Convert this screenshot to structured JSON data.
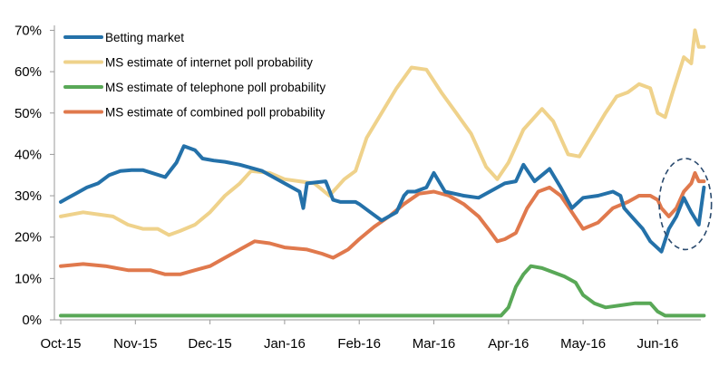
{
  "chart_data": {
    "type": "line",
    "title": "",
    "xlabel": "",
    "ylabel": "",
    "x_tick_labels": [
      "Oct-15",
      "Nov-15",
      "Dec-15",
      "Jan-16",
      "Feb-16",
      "Mar-16",
      "Apr-16",
      "May-16",
      "Jun-16"
    ],
    "y_tick_labels": [
      "0%",
      "10%",
      "20%",
      "30%",
      "40%",
      "50%",
      "60%",
      "70%"
    ],
    "ylim": [
      0,
      70
    ],
    "y_unit": "%",
    "x_unit": "months since Oct-15",
    "xlim": [
      0,
      8.75
    ],
    "legend_position": "top-left",
    "grid": false,
    "series": [
      {
        "name": "Betting market",
        "color": "#2471A9",
        "x": [
          0,
          0.1,
          0.2,
          0.35,
          0.5,
          0.65,
          0.8,
          0.95,
          1.1,
          1.4,
          1.55,
          1.65,
          1.8,
          1.9,
          2.05,
          2.2,
          2.4,
          2.7,
          3.0,
          3.2,
          3.25,
          3.3,
          3.55,
          3.65,
          3.75,
          3.85,
          3.95,
          4.0,
          4.15,
          4.3,
          4.5,
          4.6,
          4.65,
          4.75,
          4.9,
          5.0,
          5.15,
          5.4,
          5.6,
          5.8,
          5.95,
          6.1,
          6.2,
          6.35,
          6.55,
          6.7,
          6.85,
          7.0,
          7.2,
          7.4,
          7.5,
          7.55,
          7.65,
          7.8,
          7.9,
          8.05,
          8.15,
          8.25,
          8.35,
          8.45,
          8.55,
          8.62
        ],
        "values": [
          28.5,
          29.5,
          30.5,
          32,
          33,
          35,
          36,
          36.2,
          36.2,
          34.5,
          38,
          42,
          41,
          39,
          38.5,
          38.2,
          37.5,
          36,
          33,
          31,
          27,
          33,
          33.5,
          29,
          28.5,
          28.5,
          28.5,
          28,
          26,
          24,
          26,
          30,
          31,
          31,
          32,
          35.5,
          31,
          30,
          29.5,
          31.5,
          33,
          33.5,
          37.5,
          33.5,
          36.5,
          32,
          27,
          29.5,
          30,
          31,
          30,
          27,
          25,
          22,
          19,
          16.5,
          22,
          25,
          29.5,
          26,
          23,
          32
        ]
      },
      {
        "name": "MS estimate of internet poll probability",
        "color": "#EFD28B",
        "x": [
          0,
          0.3,
          0.5,
          0.7,
          0.9,
          1.1,
          1.3,
          1.45,
          1.6,
          1.8,
          2.0,
          2.2,
          2.4,
          2.55,
          2.8,
          3.0,
          3.2,
          3.4,
          3.6,
          3.8,
          3.95,
          4.1,
          4.3,
          4.5,
          4.7,
          4.9,
          5.1,
          5.3,
          5.5,
          5.7,
          5.85,
          6.0,
          6.2,
          6.45,
          6.6,
          6.8,
          6.95,
          7.1,
          7.3,
          7.45,
          7.6,
          7.75,
          7.9,
          8.0,
          8.1,
          8.2,
          8.35,
          8.45,
          8.5,
          8.55,
          8.62
        ],
        "values": [
          25,
          26,
          25.5,
          25,
          23,
          22,
          22,
          20.5,
          21.5,
          23,
          26,
          30,
          33,
          36,
          35.5,
          34,
          33.5,
          33,
          30,
          34,
          36,
          44,
          50,
          56,
          61,
          60.5,
          55,
          50,
          45,
          37,
          34,
          38,
          46,
          51,
          48,
          40,
          39.5,
          44,
          50,
          54,
          55,
          57,
          56,
          50,
          49,
          55,
          63.5,
          62,
          70,
          66,
          66
        ]
      },
      {
        "name": "MS estimate of telephone poll probability",
        "color": "#59A857",
        "x": [
          0,
          1,
          2,
          3,
          4,
          5,
          5.9,
          6.0,
          6.1,
          6.2,
          6.3,
          6.45,
          6.6,
          6.75,
          6.9,
          7.0,
          7.15,
          7.3,
          7.5,
          7.7,
          7.9,
          8.0,
          8.1,
          8.3,
          8.62
        ],
        "values": [
          1,
          1,
          1,
          1,
          1,
          1,
          1,
          3,
          8,
          11,
          13,
          12.5,
          11.5,
          10.5,
          9,
          6,
          4,
          3,
          3.5,
          4,
          4,
          2,
          1,
          1,
          1
        ]
      },
      {
        "name": "MS estimate of combined poll probability",
        "color": "#E0794D",
        "x": [
          0,
          0.3,
          0.6,
          0.9,
          1.2,
          1.4,
          1.6,
          1.8,
          2.0,
          2.2,
          2.4,
          2.6,
          2.8,
          3.0,
          3.3,
          3.5,
          3.65,
          3.85,
          4.0,
          4.2,
          4.4,
          4.6,
          4.8,
          5.0,
          5.2,
          5.4,
          5.6,
          5.75,
          5.85,
          5.95,
          6.1,
          6.25,
          6.4,
          6.55,
          6.7,
          6.85,
          7.0,
          7.2,
          7.4,
          7.6,
          7.75,
          7.9,
          8.0,
          8.05,
          8.15,
          8.25,
          8.35,
          8.45,
          8.5,
          8.55,
          8.62
        ],
        "values": [
          13,
          13.5,
          13,
          12,
          12,
          11,
          11,
          12,
          13,
          15,
          17,
          19,
          18.5,
          17.5,
          17,
          16,
          15,
          17,
          19.5,
          22.5,
          25,
          28,
          30.5,
          31,
          30,
          28,
          25,
          21.5,
          19,
          19.5,
          21,
          27,
          31,
          32,
          30,
          26,
          22,
          23.5,
          27,
          28.5,
          30,
          30,
          29,
          27,
          25,
          27,
          31,
          33,
          35.5,
          33.5,
          33.5
        ]
      }
    ],
    "annotations": [
      {
        "type": "dashed-ellipse",
        "description": "highlight",
        "x_center": 8.37,
        "y_center": 28,
        "x_radius": 0.35,
        "y_radius": 11
      }
    ]
  }
}
